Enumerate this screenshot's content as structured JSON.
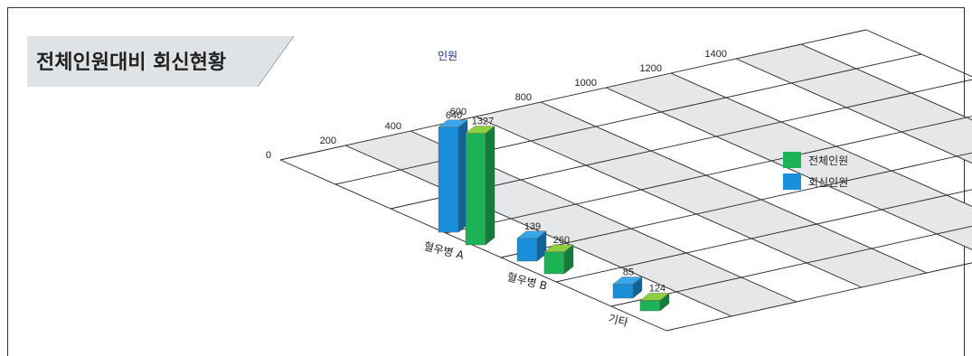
{
  "chart_data": {
    "type": "bar",
    "title": "전체인원대비 회신현황",
    "ylabel": "인원",
    "xlabel": "",
    "ylim": [
      0,
      1400
    ],
    "yticks": [
      "0",
      "200",
      "400",
      "600",
      "800",
      "1000",
      "1200",
      "1400"
    ],
    "categories": [
      "혈우병 A",
      "혈우병 B",
      "기타"
    ],
    "series": [
      {
        "name": "회신인원",
        "values": [
          640,
          139,
          85
        ],
        "labels": [
          "640",
          "139",
          "85"
        ],
        "color": "#1a8fd9"
      },
      {
        "name": "전체인원",
        "values": [
          1327,
          260,
          124
        ],
        "labels": [
          "1327",
          "260",
          "124"
        ],
        "color": "#1db255"
      }
    ],
    "legend_order": [
      "전체인원",
      "회신인원"
    ],
    "legend_position": "right",
    "grid": true,
    "style": "3d-perspective"
  }
}
